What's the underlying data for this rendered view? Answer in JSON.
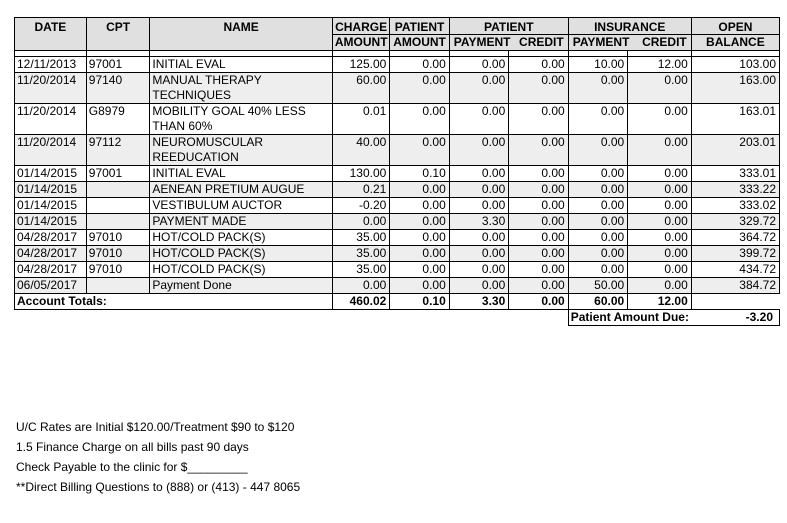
{
  "header": {
    "date": "DATE",
    "cpt": "CPT",
    "name": "NAME",
    "charge_top": "CHARGE",
    "charge_bottom": "AMOUNT",
    "patient_amount_top": "PATIENT",
    "patient_amount_bottom": "AMOUNT",
    "patient_group": "PATIENT",
    "patient_payment": "PAYMENT",
    "patient_credit": "CREDIT",
    "insurance_group": "INSURANCE",
    "insurance_payment": "PAYMENT",
    "insurance_credit": "CREDIT",
    "open_top": "OPEN",
    "open_bottom": "BALANCE"
  },
  "rows": [
    {
      "date": "12/11/2013",
      "cpt": "97001",
      "name": "INITIAL EVAL",
      "charge": "125.00",
      "pat_amount": "0.00",
      "pat_payment": "0.00",
      "pat_credit": "0.00",
      "ins_payment": "10.00",
      "ins_credit": "12.00",
      "balance": "103.00"
    },
    {
      "date": "11/20/2014",
      "cpt": "97140",
      "name": "MANUAL THERAPY TECHNIQUES",
      "charge": "60.00",
      "pat_amount": "0.00",
      "pat_payment": "0.00",
      "pat_credit": "0.00",
      "ins_payment": "0.00",
      "ins_credit": "0.00",
      "balance": "163.00"
    },
    {
      "date": "11/20/2014",
      "cpt": "G8979",
      "name": "MOBILITY GOAL 40% LESS THAN 60%",
      "charge": "0.01",
      "pat_amount": "0.00",
      "pat_payment": "0.00",
      "pat_credit": "0.00",
      "ins_payment": "0.00",
      "ins_credit": "0.00",
      "balance": "163.01"
    },
    {
      "date": "11/20/2014",
      "cpt": "97112",
      "name": "NEUROMUSCULAR REEDUCATION",
      "charge": "40.00",
      "pat_amount": "0.00",
      "pat_payment": "0.00",
      "pat_credit": "0.00",
      "ins_payment": "0.00",
      "ins_credit": "0.00",
      "balance": "203.01"
    },
    {
      "date": "01/14/2015",
      "cpt": "97001",
      "name": "INITIAL EVAL",
      "charge": "130.00",
      "pat_amount": "0.10",
      "pat_payment": "0.00",
      "pat_credit": "0.00",
      "ins_payment": "0.00",
      "ins_credit": "0.00",
      "balance": "333.01"
    },
    {
      "date": "01/14/2015",
      "cpt": "",
      "name": "AENEAN PRETIUM AUGUE",
      "charge": "0.21",
      "pat_amount": "0.00",
      "pat_payment": "0.00",
      "pat_credit": "0.00",
      "ins_payment": "0.00",
      "ins_credit": "0.00",
      "balance": "333.22"
    },
    {
      "date": "01/14/2015",
      "cpt": "",
      "name": "VESTIBULUM AUCTOR",
      "charge": "-0.20",
      "pat_amount": "0.00",
      "pat_payment": "0.00",
      "pat_credit": "0.00",
      "ins_payment": "0.00",
      "ins_credit": "0.00",
      "balance": "333.02"
    },
    {
      "date": "01/14/2015",
      "cpt": "",
      "name": "PAYMENT MADE",
      "charge": "0.00",
      "pat_amount": "0.00",
      "pat_payment": "3.30",
      "pat_credit": "0.00",
      "ins_payment": "0.00",
      "ins_credit": "0.00",
      "balance": "329.72"
    },
    {
      "date": "04/28/2017",
      "cpt": "97010",
      "name": "HOT/COLD PACK(S)",
      "charge": "35.00",
      "pat_amount": "0.00",
      "pat_payment": "0.00",
      "pat_credit": "0.00",
      "ins_payment": "0.00",
      "ins_credit": "0.00",
      "balance": "364.72"
    },
    {
      "date": "04/28/2017",
      "cpt": "97010",
      "name": "HOT/COLD PACK(S)",
      "charge": "35.00",
      "pat_amount": "0.00",
      "pat_payment": "0.00",
      "pat_credit": "0.00",
      "ins_payment": "0.00",
      "ins_credit": "0.00",
      "balance": "399.72"
    },
    {
      "date": "04/28/2017",
      "cpt": "97010",
      "name": "HOT/COLD PACK(S)",
      "charge": "35.00",
      "pat_amount": "0.00",
      "pat_payment": "0.00",
      "pat_credit": "0.00",
      "ins_payment": "0.00",
      "ins_credit": "0.00",
      "balance": "434.72"
    },
    {
      "date": "06/05/2017",
      "cpt": "",
      "name": "Payment Done",
      "charge": "0.00",
      "pat_amount": "0.00",
      "pat_payment": "0.00",
      "pat_credit": "0.00",
      "ins_payment": "50.00",
      "ins_credit": "0.00",
      "balance": "384.72"
    }
  ],
  "totals": {
    "label": "Account Totals:",
    "charge": "460.02",
    "pat_amount": "0.10",
    "pat_payment": "3.30",
    "pat_credit": "0.00",
    "ins_payment": "60.00",
    "ins_credit": "12.00"
  },
  "due": {
    "label": "Patient Amount Due:",
    "value": "-3.20"
  },
  "notes": [
    "U/C Rates are Initial $120.00/Treatment $90 to $120",
    "1.5 Finance Charge on all bills past 90 days",
    "Check Payable to the clinic for $_________",
    "**Direct Billing Questions to (888) or (413) - 447 8065"
  ]
}
